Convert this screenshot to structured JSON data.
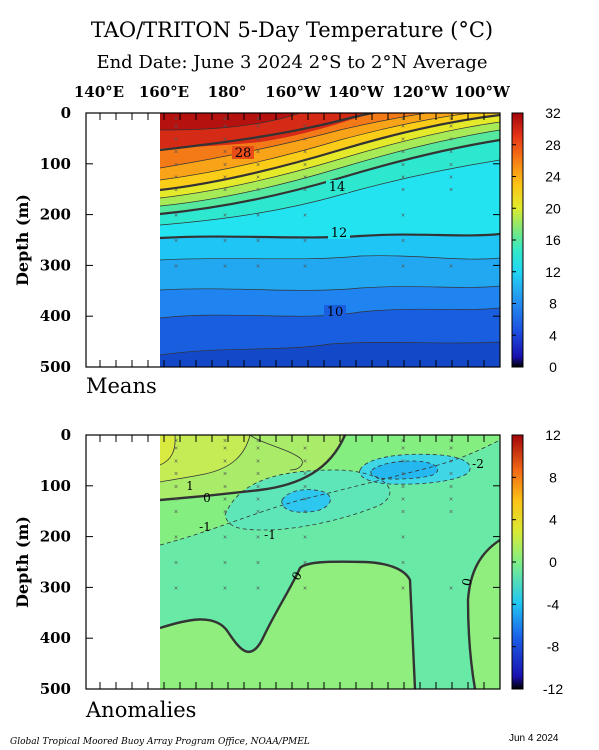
{
  "header": {
    "title": "TAO/TRITON 5-Day Temperature (°C)",
    "subtitle": "End Date: June 3 2024   2°S to 2°N Average",
    "lon_labels": [
      "140°E",
      "160°E",
      "180°",
      "160°W",
      "140°W",
      "120°W",
      "100°W"
    ]
  },
  "footer": {
    "credit": "Global Tropical Moored Buoy Array Program Office, NOAA/PMEL",
    "date": "Jun  4 2024"
  },
  "chart_data": [
    {
      "type": "heatmap",
      "panel_label": "Means",
      "ylabel": "Depth (m)",
      "yticks": [
        0,
        100,
        200,
        300,
        400,
        500
      ],
      "ylim": [
        500,
        0
      ],
      "colorbar": {
        "ticks": [
          0,
          4,
          8,
          12,
          16,
          20,
          24,
          28,
          32
        ],
        "range": [
          0,
          32
        ]
      },
      "contour_labels": [
        "28",
        "14",
        "12",
        "10"
      ]
    },
    {
      "type": "heatmap",
      "panel_label": "Anomalies",
      "ylabel": "Depth (m)",
      "yticks": [
        0,
        100,
        200,
        300,
        400,
        500
      ],
      "ylim": [
        500,
        0
      ],
      "colorbar": {
        "ticks": [
          -12,
          -8,
          -4,
          0,
          4,
          8,
          12
        ],
        "range": [
          -12,
          12
        ]
      },
      "contour_labels": [
        "1",
        "0",
        "-1",
        "-1",
        "-2",
        "0",
        "0"
      ]
    }
  ]
}
